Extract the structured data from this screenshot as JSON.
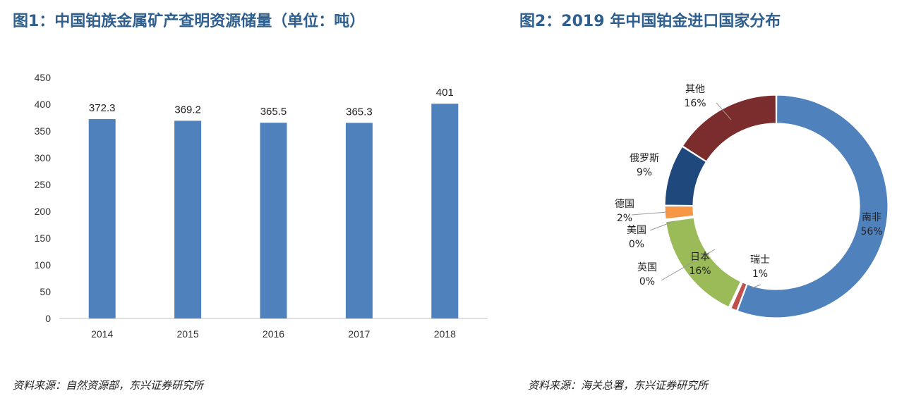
{
  "titles": {
    "chart1": "图1：中国铂族金属矿产查明资源储量（单位：吨）",
    "chart2": "图2：2019 年中国铂金进口国家分布"
  },
  "sources": {
    "chart1": "资料来源：自然资源部，东兴证券研究所",
    "chart2": "资料来源：海关总署，东兴证券研究所"
  },
  "chart_data": [
    {
      "type": "bar",
      "title": "图1：中国铂族金属矿产查明资源储量（单位：吨）",
      "categories": [
        "2014",
        "2015",
        "2016",
        "2017",
        "2018"
      ],
      "values": [
        372.3,
        369.2,
        365.5,
        365.3,
        401
      ],
      "data_labels": [
        "372.3",
        "369.2",
        "365.5",
        "365.3",
        "401"
      ],
      "ylim": [
        0,
        450
      ],
      "yticks": [
        0,
        50,
        100,
        150,
        200,
        250,
        300,
        350,
        400,
        450
      ],
      "grid": false,
      "bar_color": "#4f81bd"
    },
    {
      "type": "pie",
      "variant": "donut",
      "title": "图2：2019 年中国铂金进口国家分布",
      "slices": [
        {
          "label": "南非",
          "value": 56,
          "value_label": "56%",
          "color": "#4f81bd"
        },
        {
          "label": "瑞士",
          "value": 1,
          "value_label": "1%",
          "color": "#c0504d"
        },
        {
          "label": "英国",
          "value": 0,
          "value_label": "0%",
          "color": "#9bbb59"
        },
        {
          "label": "日本",
          "value": 16,
          "value_label": "16%",
          "color": "#9bbb59"
        },
        {
          "label": "美国",
          "value": 0,
          "value_label": "0%",
          "color": "#8064a2"
        },
        {
          "label": "德国",
          "value": 2,
          "value_label": "2%",
          "color": "#f79646"
        },
        {
          "label": "俄罗斯",
          "value": 9,
          "value_label": "9%",
          "color": "#1f497d"
        },
        {
          "label": "其他",
          "value": 16,
          "value_label": "16%",
          "color": "#7b2c2c"
        }
      ]
    }
  ]
}
